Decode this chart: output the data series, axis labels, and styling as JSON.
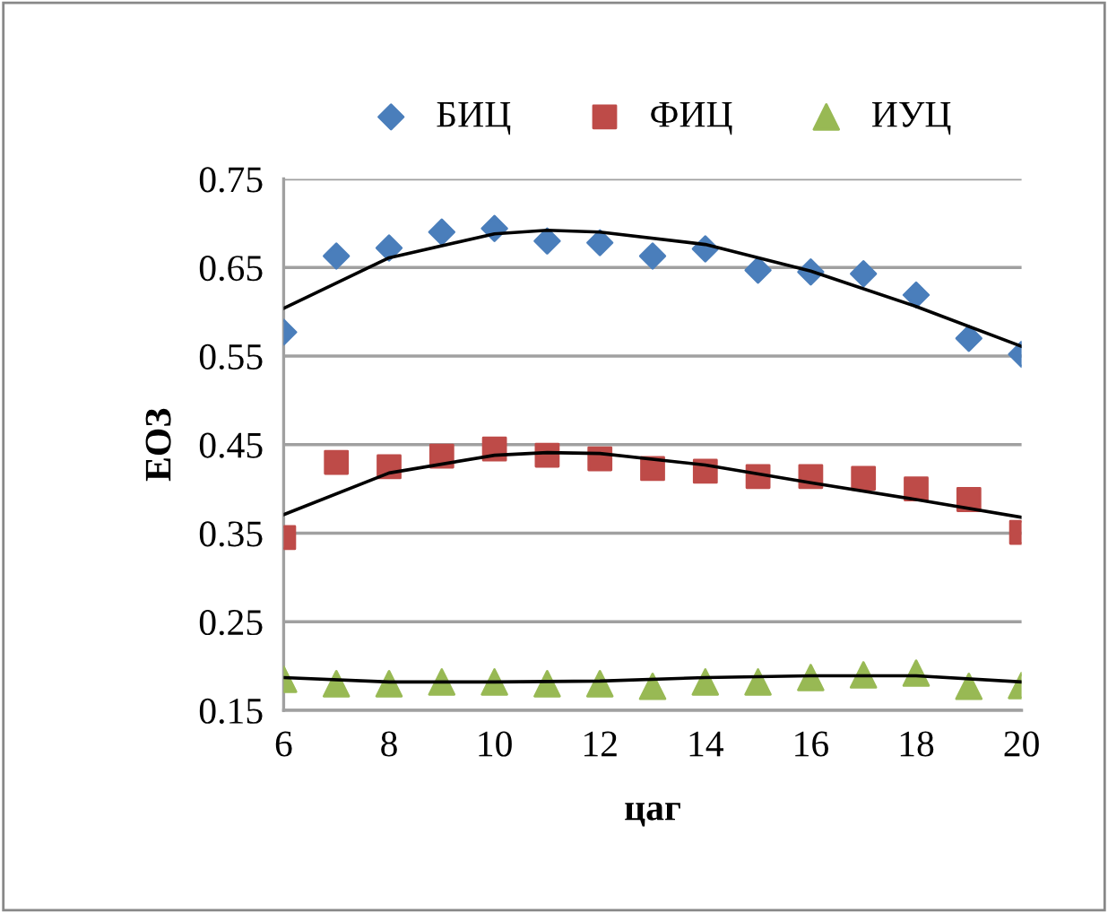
{
  "chart_data": {
    "type": "scatter",
    "xlabel": "цаг",
    "ylabel": "ЕОЗ",
    "x": [
      6,
      7,
      8,
      9,
      10,
      11,
      12,
      13,
      14,
      15,
      16,
      17,
      18,
      19,
      20
    ],
    "series": [
      {
        "name": "БИЦ",
        "color": "#4a7ebb",
        "marker": "diamond",
        "values": [
          0.577,
          0.663,
          0.672,
          0.69,
          0.694,
          0.68,
          0.678,
          0.663,
          0.671,
          0.647,
          0.645,
          0.643,
          0.619,
          0.57,
          0.552
        ]
      },
      {
        "name": "ФИЦ",
        "color": "#be4b48",
        "marker": "square",
        "values": [
          0.345,
          0.43,
          0.425,
          0.437,
          0.445,
          0.438,
          0.434,
          0.423,
          0.42,
          0.414,
          0.414,
          0.412,
          0.4,
          0.388,
          0.351
        ]
      },
      {
        "name": "ИУЦ",
        "color": "#98b954",
        "marker": "triangle",
        "values": [
          0.185,
          0.18,
          0.18,
          0.182,
          0.182,
          0.18,
          0.18,
          0.177,
          0.182,
          0.182,
          0.187,
          0.19,
          0.192,
          0.177,
          0.178
        ]
      },
      {
        "type": "line",
        "color": "#000000",
        "marker": "none",
        "x": [
          6,
          8,
          10,
          11,
          12,
          14,
          16,
          18,
          20
        ],
        "values": [
          0.604,
          0.661,
          0.688,
          0.692,
          0.69,
          0.676,
          0.646,
          0.606,
          0.561
        ]
      },
      {
        "type": "line",
        "color": "#000000",
        "marker": "none",
        "x": [
          6,
          8,
          10,
          11,
          12,
          14,
          16,
          18,
          20
        ],
        "values": [
          0.371,
          0.418,
          0.438,
          0.441,
          0.44,
          0.427,
          0.407,
          0.388,
          0.368
        ]
      },
      {
        "type": "line",
        "color": "#000000",
        "marker": "none",
        "x": [
          6,
          8,
          10,
          12,
          14,
          16,
          17,
          18,
          20
        ],
        "values": [
          0.187,
          0.182,
          0.182,
          0.183,
          0.187,
          0.189,
          0.189,
          0.189,
          0.182
        ]
      }
    ],
    "xlim": [
      6,
      20
    ],
    "xticks": [
      6,
      8,
      10,
      12,
      14,
      16,
      18,
      20
    ],
    "ylim": [
      0.15,
      0.75
    ],
    "yticks": [
      0.15,
      0.25,
      0.35,
      0.45,
      0.55,
      0.65,
      0.75
    ],
    "grid": "y",
    "legend": "top"
  }
}
